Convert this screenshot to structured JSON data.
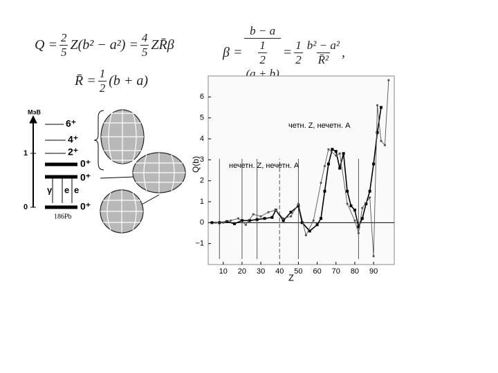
{
  "formulas": {
    "q": {
      "lhs": "Q =",
      "f1num": "2",
      "f1den": "5",
      "mid": "Z(b² − a²) =",
      "f2num": "4",
      "f2den": "5",
      "rhs": "ZR̄β"
    },
    "r": {
      "lhs": "R̄ =",
      "num": "1",
      "den": "2",
      "rhs": "(b + a)"
    },
    "beta": {
      "lhs": "β =",
      "num": "b − a",
      "den1": "1",
      "den2": "2",
      "den3": "(a + b)",
      "eq": "=",
      "f2num": "1",
      "f2den": "2",
      "f3num": "b² − a²",
      "f3den": "R̄²",
      "end": ","
    }
  },
  "diagram": {
    "unit": "МэВ",
    "axis": [
      "1",
      "0"
    ],
    "levels": [
      "6⁺",
      "4⁺",
      "2⁺",
      "0⁺",
      "0⁺",
      "0⁺"
    ],
    "transitions": [
      "γ",
      "e",
      "e"
    ],
    "nucleus": "186Pb"
  },
  "chart_data": {
    "type": "line",
    "x_label": "Z",
    "y_label": "Q(b)",
    "xlim": [
      2,
      101
    ],
    "ylim": [
      -2,
      7
    ],
    "xticks": [
      10,
      20,
      30,
      40,
      50,
      60,
      70,
      80,
      90
    ],
    "yticks": [
      {
        "value": -1,
        "label": "−1"
      },
      0,
      1,
      2,
      3,
      4,
      5,
      6
    ],
    "reference_lines": [
      8,
      20,
      28,
      40,
      50,
      82
    ],
    "annotations": [
      "четн. Z, нечетн. A",
      "нечетн. Z, нечетн. A"
    ],
    "series": [
      {
        "color": "#000000",
        "x": [
          4,
          8,
          12,
          16,
          20,
          24,
          28,
          32,
          36,
          38,
          42,
          46,
          50,
          52,
          56,
          60,
          62,
          64,
          66,
          68,
          70,
          72,
          74,
          76,
          78,
          80,
          82,
          84,
          86,
          88,
          90,
          92,
          94
        ],
        "values": [
          0,
          0,
          0.05,
          -0.05,
          0.1,
          0.1,
          0.15,
          0.2,
          0.25,
          0.6,
          0.1,
          0.5,
          0.8,
          0,
          -0.4,
          -0.1,
          0.2,
          1.5,
          2.8,
          3.5,
          3.4,
          2.6,
          3.3,
          1.5,
          0.8,
          0.6,
          -0.2,
          0.2,
          0.9,
          1.5,
          2.8,
          4.3,
          5.5
        ]
      },
      {
        "color": "#555555",
        "x": [
          6,
          10,
          14,
          18,
          22,
          26,
          30,
          34,
          38,
          42,
          46,
          50,
          54,
          58,
          62,
          64,
          66,
          70,
          72,
          76,
          80,
          82,
          84,
          88,
          90,
          92,
          94,
          96,
          98
        ],
        "values": [
          0,
          0,
          0.1,
          0.2,
          -0.1,
          0.4,
          0.3,
          0.5,
          0.6,
          0.2,
          0.3,
          0.9,
          -0.6,
          0.1,
          1.9,
          2.7,
          3.5,
          3.2,
          3.3,
          0.9,
          0.1,
          -0.5,
          0.7,
          1.2,
          -1.6,
          5.6,
          3.9,
          3.7,
          6.8
        ]
      }
    ]
  }
}
